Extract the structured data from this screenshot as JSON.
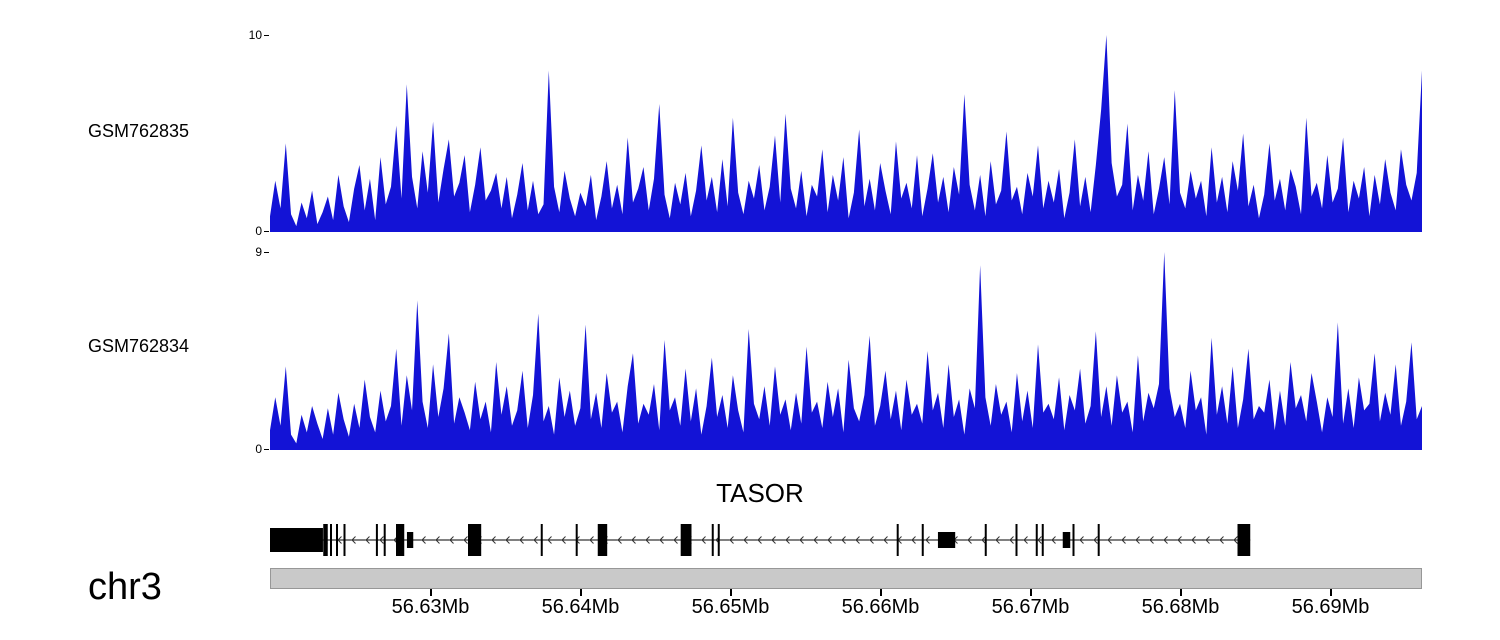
{
  "view": {
    "background": "#ffffff",
    "signal_color": "#1313d6"
  },
  "chart_data": [
    {
      "type": "area",
      "name": "GSM762835",
      "ylim": [
        0,
        10
      ],
      "x_range_mb": [
        56.6193,
        56.6961
      ],
      "color": "#1313d6",
      "values": [
        0.8,
        2.6,
        1.2,
        4.5,
        0.9,
        0.3,
        1.5,
        0.7,
        2.1,
        0.4,
        1.0,
        1.8,
        0.6,
        2.9,
        1.3,
        0.5,
        2.2,
        3.4,
        1.1,
        2.7,
        0.6,
        3.8,
        1.4,
        2.3,
        5.4,
        1.7,
        7.5,
        2.8,
        1.2,
        4.1,
        2.0,
        5.6,
        1.5,
        3.2,
        4.7,
        1.8,
        2.5,
        3.9,
        1.0,
        2.4,
        4.3,
        1.6,
        2.1,
        3.0,
        1.2,
        2.8,
        0.7,
        1.9,
        3.5,
        1.1,
        2.6,
        0.9,
        1.4,
        8.2,
        2.3,
        1.0,
        3.1,
        1.7,
        0.8,
        2.0,
        1.3,
        2.9,
        0.6,
        1.8,
        3.6,
        1.2,
        2.4,
        0.9,
        4.8,
        1.5,
        2.2,
        3.3,
        1.1,
        2.7,
        6.5,
        1.9,
        0.7,
        2.5,
        1.4,
        3.0,
        0.8,
        2.1,
        4.4,
        1.6,
        2.8,
        1.0,
        3.7,
        1.3,
        5.8,
        2.0,
        0.9,
        2.6,
        1.7,
        3.4,
        1.1,
        2.3,
        4.9,
        1.5,
        6.0,
        2.2,
        1.2,
        3.1,
        0.8,
        2.4,
        1.8,
        4.2,
        1.0,
        2.9,
        1.6,
        3.8,
        0.7,
        2.0,
        5.2,
        1.3,
        2.7,
        1.1,
        3.5,
        2.1,
        0.9,
        4.6,
        1.7,
        2.5,
        1.2,
        3.9,
        0.8,
        2.2,
        4.0,
        1.5,
        2.8,
        1.0,
        3.3,
        1.9,
        7.0,
        2.4,
        1.1,
        2.9,
        0.8,
        3.6,
        1.4,
        2.1,
        5.1,
        1.6,
        2.3,
        0.9,
        3.0,
        1.8,
        4.4,
        1.2,
        2.6,
        1.5,
        3.2,
        0.7,
        2.0,
        4.7,
        1.3,
        2.8,
        1.0,
        3.4,
        6.2,
        10.0,
        3.5,
        1.8,
        2.4,
        5.5,
        1.1,
        2.9,
        1.6,
        4.1,
        0.9,
        2.2,
        3.8,
        1.4,
        7.2,
        2.0,
        1.2,
        3.1,
        1.7,
        2.6,
        0.8,
        4.3,
        1.5,
        2.8,
        1.0,
        3.6,
        2.1,
        5.0,
        1.3,
        2.4,
        0.7,
        1.9,
        4.5,
        1.6,
        2.7,
        1.1,
        3.2,
        2.3,
        0.9,
        5.8,
        1.8,
        2.5,
        1.2,
        3.9,
        1.5,
        2.2,
        4.8,
        1.0,
        2.6,
        1.7,
        3.3,
        0.8,
        2.9,
        1.4,
        3.7,
        2.0,
        1.1,
        4.2,
        2.4,
        1.6,
        3.0,
        8.2
      ]
    },
    {
      "type": "area",
      "name": "GSM762834",
      "ylim": [
        0,
        9
      ],
      "x_range_mb": [
        56.6193,
        56.6961
      ],
      "color": "#1313d6",
      "values": [
        0.9,
        2.4,
        1.1,
        3.8,
        0.7,
        0.3,
        1.6,
        0.8,
        2.0,
        1.2,
        0.5,
        1.9,
        0.7,
        2.6,
        1.4,
        0.6,
        2.1,
        1.0,
        3.2,
        1.5,
        0.8,
        2.7,
        1.3,
        2.0,
        4.6,
        1.1,
        3.4,
        1.8,
        6.8,
        2.2,
        1.0,
        3.9,
        1.5,
        2.8,
        5.3,
        1.2,
        2.4,
        1.7,
        0.9,
        3.1,
        1.4,
        2.2,
        0.8,
        4.0,
        1.6,
        2.9,
        1.1,
        1.8,
        3.6,
        1.0,
        2.5,
        6.2,
        1.3,
        2.0,
        0.7,
        3.3,
        1.5,
        2.7,
        1.1,
        1.9,
        5.7,
        1.4,
        2.6,
        1.0,
        3.5,
        1.7,
        2.2,
        0.8,
        2.9,
        4.4,
        1.2,
        2.1,
        1.6,
        3.0,
        0.9,
        5.0,
        1.8,
        2.4,
        1.1,
        3.7,
        1.3,
        2.8,
        0.7,
        2.0,
        4.2,
        1.5,
        2.5,
        1.0,
        3.4,
        1.8,
        0.8,
        5.5,
        2.1,
        1.4,
        2.9,
        1.1,
        3.8,
        1.6,
        2.3,
        0.9,
        2.6,
        1.2,
        4.7,
        1.7,
        2.2,
        1.0,
        3.1,
        1.5,
        2.8,
        0.8,
        4.1,
        1.9,
        1.3,
        2.5,
        5.2,
        1.1,
        2.0,
        3.6,
        1.4,
        2.7,
        0.9,
        3.2,
        1.6,
        2.1,
        1.2,
        4.5,
        1.8,
        2.6,
        1.0,
        3.9,
        1.5,
        2.3,
        0.7,
        2.8,
        1.9,
        8.4,
        2.4,
        1.1,
        3.0,
        1.6,
        2.2,
        0.8,
        3.5,
        1.3,
        2.7,
        1.0,
        4.8,
        1.7,
        2.1,
        1.4,
        3.3,
        0.9,
        2.5,
        1.8,
        3.7,
        1.2,
        2.0,
        5.4,
        1.5,
        2.9,
        1.1,
        3.4,
        1.7,
        2.2,
        0.8,
        4.3,
        1.3,
        2.6,
        1.9,
        3.0,
        9.0,
        2.8,
        1.5,
        2.1,
        1.0,
        3.6,
        1.8,
        2.4,
        0.7,
        5.1,
        1.6,
        2.9,
        1.2,
        3.8,
        1.0,
        2.3,
        4.6,
        1.4,
        2.0,
        1.7,
        3.2,
        0.9,
        2.7,
        1.1,
        4.0,
        1.9,
        2.5,
        1.3,
        3.5,
        2.2,
        0.8,
        2.4,
        1.5,
        5.8,
        1.2,
        2.8,
        1.0,
        3.3,
        1.8,
        2.1,
        4.4,
        1.3,
        2.6,
        1.6,
        3.9,
        1.1,
        2.2,
        4.9,
        1.4,
        2.0
      ]
    },
    {
      "type": "gene-model",
      "name": "TASOR",
      "chromosome": "chr3",
      "strand": "-",
      "gene_start_mb": 56.6193,
      "gene_end_mb": 56.68465,
      "exons_mb": [
        [
          56.6193,
          56.62283,
          "thick"
        ],
        [
          56.62285,
          56.62315,
          "tall"
        ],
        [
          56.6233,
          56.62338,
          "tall"
        ],
        [
          56.6237,
          56.62378,
          "tall"
        ],
        [
          56.6242,
          56.62428,
          "tall"
        ],
        [
          56.62636,
          56.62644,
          "tall"
        ],
        [
          56.62688,
          56.62696,
          "tall"
        ],
        [
          56.6277,
          56.62825,
          "tall"
        ],
        [
          56.62843,
          56.62885,
          "short"
        ],
        [
          56.6325,
          56.63338,
          "tall"
        ],
        [
          56.63735,
          56.63742,
          "tall"
        ],
        [
          56.63968,
          56.63976,
          "tall"
        ],
        [
          56.64115,
          56.64178,
          "tall"
        ],
        [
          56.64668,
          56.6474,
          "tall"
        ],
        [
          56.64875,
          56.64882,
          "tall"
        ],
        [
          56.64915,
          56.64922,
          "tall"
        ],
        [
          56.66108,
          56.66116,
          "tall"
        ],
        [
          56.66275,
          56.66283,
          "tall"
        ],
        [
          56.66383,
          56.66498,
          "short"
        ],
        [
          56.66695,
          56.66703,
          "tall"
        ],
        [
          56.669,
          56.66908,
          "tall"
        ],
        [
          56.67035,
          56.67043,
          "tall"
        ],
        [
          56.67075,
          56.67083,
          "tall"
        ],
        [
          56.67215,
          56.67265,
          "short"
        ],
        [
          56.6728,
          56.67288,
          "tall"
        ],
        [
          56.67448,
          56.67456,
          "tall"
        ],
        [
          56.6838,
          56.68465,
          "tall"
        ]
      ],
      "axis": {
        "start_mb": 56.6193,
        "end_mb": 56.6961,
        "ticks": [
          {
            "mb": 56.63,
            "label": "56.63Mb"
          },
          {
            "mb": 56.64,
            "label": "56.64Mb"
          },
          {
            "mb": 56.65,
            "label": "56.65Mb"
          },
          {
            "mb": 56.66,
            "label": "56.66Mb"
          },
          {
            "mb": 56.67,
            "label": "56.67Mb"
          },
          {
            "mb": 56.68,
            "label": "56.68Mb"
          },
          {
            "mb": 56.69,
            "label": "56.69Mb"
          }
        ]
      }
    }
  ]
}
